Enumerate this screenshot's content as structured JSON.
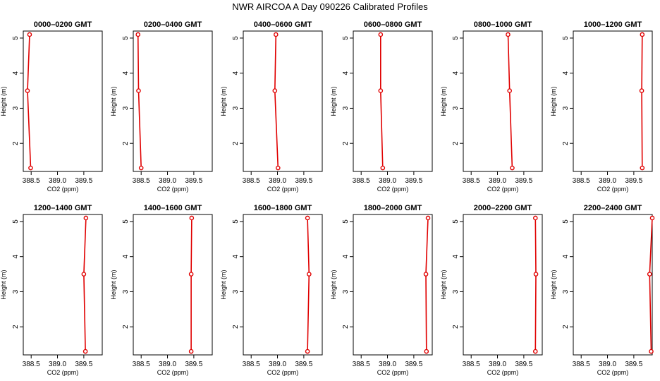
{
  "figure": {
    "title": "NWR AIRCOA A  Day 090226  Calibrated Profiles"
  },
  "chart_data": [
    {
      "type": "line",
      "title": "0000–0200 GMT",
      "xlabel": "CO2 (ppm)",
      "ylabel": "Height (m)",
      "xlim": [
        388.35,
        389.85
      ],
      "ylim": [
        1.2,
        5.2
      ],
      "xticks": [
        "388.5",
        "389.0",
        "389.5"
      ],
      "yticks": [
        "2",
        "3",
        "4",
        "5"
      ],
      "grid": false,
      "series": [
        {
          "x": [
            388.47,
            388.43,
            388.49
          ],
          "y": [
            5.1,
            3.5,
            1.3
          ],
          "color": "#e00000"
        }
      ]
    },
    {
      "type": "line",
      "title": "0200–0400 GMT",
      "xlabel": "CO2 (ppm)",
      "ylabel": "Height (m)",
      "xlim": [
        388.35,
        389.85
      ],
      "ylim": [
        1.2,
        5.2
      ],
      "xticks": [
        "388.5",
        "389.0",
        "389.5"
      ],
      "yticks": [
        "2",
        "3",
        "4",
        "5"
      ],
      "grid": false,
      "series": [
        {
          "x": [
            388.44,
            388.45,
            388.5
          ],
          "y": [
            5.1,
            3.5,
            1.3
          ],
          "color": "#e00000"
        }
      ]
    },
    {
      "type": "line",
      "title": "0400–0600 GMT",
      "xlabel": "CO2 (ppm)",
      "ylabel": "Height (m)",
      "xlim": [
        388.35,
        389.85
      ],
      "ylim": [
        1.2,
        5.2
      ],
      "xticks": [
        "388.5",
        "389.0",
        "389.5"
      ],
      "yticks": [
        "2",
        "3",
        "4",
        "5"
      ],
      "grid": false,
      "series": [
        {
          "x": [
            388.97,
            388.95,
            389.01
          ],
          "y": [
            5.1,
            3.5,
            1.3
          ],
          "color": "#e00000"
        }
      ]
    },
    {
      "type": "line",
      "title": "0600–0800 GMT",
      "xlabel": "CO2 (ppm)",
      "ylabel": "Height (m)",
      "xlim": [
        388.35,
        389.85
      ],
      "ylim": [
        1.2,
        5.2
      ],
      "xticks": [
        "388.5",
        "389.0",
        "389.5"
      ],
      "yticks": [
        "2",
        "3",
        "4",
        "5"
      ],
      "grid": false,
      "series": [
        {
          "x": [
            388.87,
            388.87,
            388.91
          ],
          "y": [
            5.1,
            3.5,
            1.3
          ],
          "color": "#e00000"
        }
      ]
    },
    {
      "type": "line",
      "title": "0800–1000 GMT",
      "xlabel": "CO2 (ppm)",
      "ylabel": "Height (m)",
      "xlim": [
        388.35,
        389.85
      ],
      "ylim": [
        1.2,
        5.2
      ],
      "xticks": [
        "388.5",
        "389.0",
        "389.5"
      ],
      "yticks": [
        "2",
        "3",
        "4",
        "5"
      ],
      "grid": false,
      "series": [
        {
          "x": [
            389.2,
            389.23,
            389.28
          ],
          "y": [
            5.1,
            3.5,
            1.3
          ],
          "color": "#e00000"
        }
      ]
    },
    {
      "type": "line",
      "title": "1000–1200 GMT",
      "xlabel": "CO2 (ppm)",
      "ylabel": "Height (m)",
      "xlim": [
        388.35,
        389.85
      ],
      "ylim": [
        1.2,
        5.2
      ],
      "xticks": [
        "388.5",
        "389.0",
        "389.5"
      ],
      "yticks": [
        "2",
        "3",
        "4",
        "5"
      ],
      "grid": false,
      "series": [
        {
          "x": [
            389.66,
            389.65,
            389.66
          ],
          "y": [
            5.1,
            3.5,
            1.3
          ],
          "color": "#e00000"
        }
      ]
    },
    {
      "type": "line",
      "title": "1200–1400 GMT",
      "xlabel": "CO2 (ppm)",
      "ylabel": "Height (m)",
      "xlim": [
        388.35,
        389.85
      ],
      "ylim": [
        1.2,
        5.2
      ],
      "xticks": [
        "388.5",
        "389.0",
        "389.5"
      ],
      "yticks": [
        "2",
        "3",
        "4",
        "5"
      ],
      "grid": false,
      "series": [
        {
          "x": [
            389.54,
            389.5,
            389.53
          ],
          "y": [
            5.1,
            3.5,
            1.3
          ],
          "color": "#e00000"
        }
      ]
    },
    {
      "type": "line",
      "title": "1400–1600 GMT",
      "xlabel": "CO2 (ppm)",
      "ylabel": "Height (m)",
      "xlim": [
        388.35,
        389.85
      ],
      "ylim": [
        1.2,
        5.2
      ],
      "xticks": [
        "388.5",
        "389.0",
        "389.5"
      ],
      "yticks": [
        "2",
        "3",
        "4",
        "5"
      ],
      "grid": false,
      "series": [
        {
          "x": [
            389.46,
            389.45,
            389.45
          ],
          "y": [
            5.1,
            3.5,
            1.3
          ],
          "color": "#e00000"
        }
      ]
    },
    {
      "type": "line",
      "title": "1600–1800 GMT",
      "xlabel": "CO2 (ppm)",
      "ylabel": "Height (m)",
      "xlim": [
        388.35,
        389.85
      ],
      "ylim": [
        1.2,
        5.2
      ],
      "xticks": [
        "388.5",
        "389.0",
        "389.5"
      ],
      "yticks": [
        "2",
        "3",
        "4",
        "5"
      ],
      "grid": false,
      "series": [
        {
          "x": [
            389.57,
            389.6,
            389.57
          ],
          "y": [
            5.1,
            3.5,
            1.3
          ],
          "color": "#e00000"
        }
      ]
    },
    {
      "type": "line",
      "title": "1800–2000 GMT",
      "xlabel": "CO2 (ppm)",
      "ylabel": "Height (m)",
      "xlim": [
        388.35,
        389.85
      ],
      "ylim": [
        1.2,
        5.2
      ],
      "xticks": [
        "388.5",
        "389.0",
        "389.5"
      ],
      "yticks": [
        "2",
        "3",
        "4",
        "5"
      ],
      "grid": false,
      "series": [
        {
          "x": [
            389.77,
            389.73,
            389.74
          ],
          "y": [
            5.1,
            3.5,
            1.3
          ],
          "color": "#e00000"
        }
      ]
    },
    {
      "type": "line",
      "title": "2000–2200 GMT",
      "xlabel": "CO2 (ppm)",
      "ylabel": "Height (m)",
      "xlim": [
        388.35,
        389.85
      ],
      "ylim": [
        1.2,
        5.2
      ],
      "xticks": [
        "388.5",
        "389.0",
        "389.5"
      ],
      "yticks": [
        "2",
        "3",
        "4",
        "5"
      ],
      "grid": false,
      "series": [
        {
          "x": [
            389.72,
            389.73,
            389.72
          ],
          "y": [
            5.1,
            3.5,
            1.3
          ],
          "color": "#e00000"
        }
      ]
    },
    {
      "type": "line",
      "title": "2200–2400 GMT",
      "xlabel": "CO2 (ppm)",
      "ylabel": "Height (m)",
      "xlim": [
        388.35,
        389.85
      ],
      "ylim": [
        1.2,
        5.2
      ],
      "xticks": [
        "388.5",
        "389.0",
        "389.5"
      ],
      "yticks": [
        "2",
        "3",
        "4",
        "5"
      ],
      "grid": false,
      "series": [
        {
          "x": [
            389.85,
            389.8,
            389.83
          ],
          "y": [
            5.1,
            3.5,
            1.3
          ],
          "color": "#e00000"
        }
      ]
    }
  ]
}
